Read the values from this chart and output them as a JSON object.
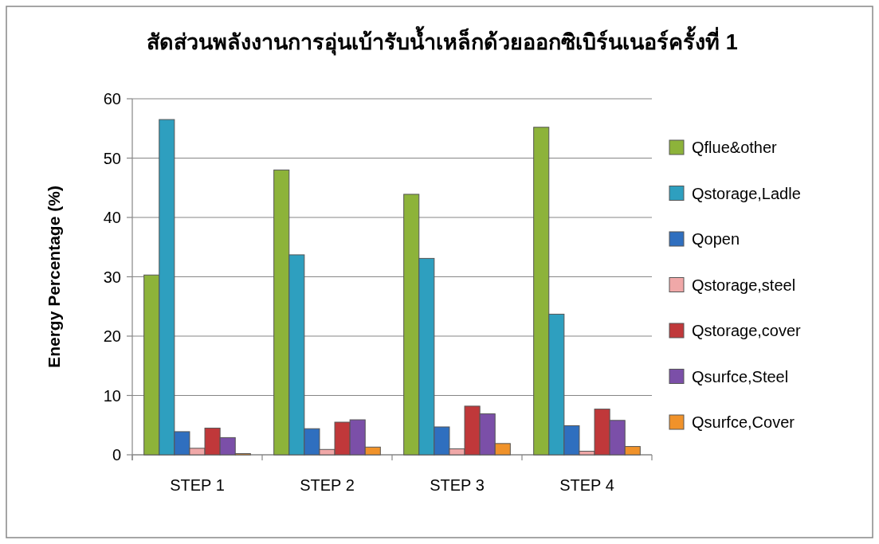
{
  "chart_data": {
    "type": "bar",
    "title": "สัดส่วนพลังงานการอุ่นเบ้ารับน้ำเหล็กด้วยออกซิเบิร์นเนอร์ครั้งที่ 1",
    "ylabel": "Energy Percentage (%)",
    "categories": [
      "STEP 1",
      "STEP 2",
      "STEP 3",
      "STEP 4"
    ],
    "series": [
      {
        "name": "Qflue&other",
        "color": "#8db33a",
        "values": [
          30.3,
          48.0,
          43.9,
          55.2
        ]
      },
      {
        "name": "Qstorage,Ladle",
        "color": "#2e9fbf",
        "values": [
          56.5,
          33.7,
          33.1,
          23.7
        ]
      },
      {
        "name": "Qopen",
        "color": "#2f6fbf",
        "values": [
          3.9,
          4.4,
          4.7,
          4.9
        ]
      },
      {
        "name": "Qstorage,steel",
        "color": "#f0a8a8",
        "values": [
          1.1,
          0.9,
          1.0,
          0.6
        ]
      },
      {
        "name": "Qstorage,cover",
        "color": "#c0383a",
        "values": [
          4.5,
          5.5,
          8.2,
          7.7
        ]
      },
      {
        "name": "Qsurfce,Steel",
        "color": "#7b4fa8",
        "values": [
          2.9,
          5.9,
          6.9,
          5.8
        ]
      },
      {
        "name": "Qsurfce,Cover",
        "color": "#f0922a",
        "values": [
          0.2,
          1.3,
          1.9,
          1.4
        ]
      }
    ],
    "ylim": [
      0,
      60
    ],
    "yticks": [
      0,
      10,
      20,
      30,
      40,
      50,
      60
    ],
    "grid": "y",
    "legend": "right"
  }
}
